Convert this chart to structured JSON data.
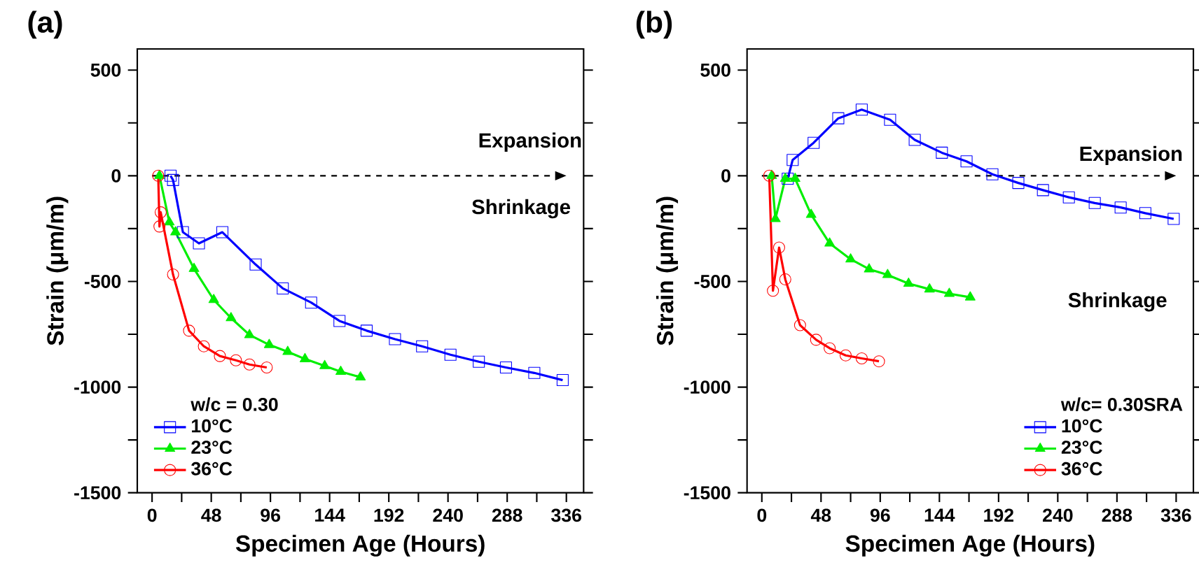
{
  "chart_data": [
    {
      "type": "line",
      "title": "(a)",
      "xlabel": "Specimen Age (Hours)",
      "ylabel": "Strain (μm/m)",
      "legend_title": "w/c = 0.30",
      "legend": "bottom left",
      "xlim": [
        -12,
        350
      ],
      "ylim": [
        -1500,
        600
      ],
      "xticks": [
        0,
        {
          "value": 24,
          "label": null
        },
        48,
        {
          "value": 72,
          "label": null
        },
        96,
        {
          "value": 120,
          "label": null
        },
        144,
        {
          "value": 168,
          "label": null
        },
        192,
        {
          "value": 216,
          "label": null
        },
        240,
        {
          "value": 264,
          "label": null
        },
        288,
        {
          "value": 312,
          "label": null
        },
        336
      ],
      "yticks": [
        -1500,
        {
          "value": -1250,
          "label": null
        },
        -1000,
        {
          "value": -750,
          "label": null
        },
        -500,
        {
          "value": -250,
          "label": null
        },
        0,
        {
          "value": 250,
          "label": null
        },
        500
      ],
      "ref_lines": [
        {
          "axis": "y",
          "value": 0,
          "line_style": "dashed",
          "color": "#000000"
        }
      ],
      "annotations": [
        "Expansion",
        "Shrinkage"
      ],
      "series": [
        {
          "name": "10°C",
          "color": "#0000ff",
          "marker": "square",
          "x": [
            15,
            17,
            25,
            38,
            57,
            84,
            106,
            129,
            152,
            174,
            197,
            219,
            242,
            265,
            287,
            310,
            333
          ],
          "values": [
            0,
            -20,
            -267,
            -320,
            -267,
            -420,
            -533,
            -600,
            -687,
            -733,
            -773,
            -807,
            -847,
            -880,
            -907,
            -933,
            -967
          ]
        },
        {
          "name": "23°C",
          "color": "#00ee00",
          "marker": "triangle",
          "x": [
            6,
            14,
            19,
            34,
            50,
            64,
            79,
            95,
            110,
            124,
            140,
            153,
            169
          ],
          "values": [
            0,
            -220,
            -267,
            -440,
            -587,
            -673,
            -753,
            -800,
            -833,
            -867,
            -900,
            -927,
            -953
          ]
        },
        {
          "name": "36°C",
          "color": "#ff0000",
          "marker": "circle",
          "x": [
            5,
            6,
            7,
            17,
            30,
            42,
            55,
            68,
            79,
            93
          ],
          "values": [
            0,
            -240,
            -173,
            -467,
            -733,
            -807,
            -853,
            -873,
            -893,
            -907
          ]
        }
      ]
    },
    {
      "type": "line",
      "title": "(b)",
      "xlabel": "Specimen Age (Hours)",
      "ylabel": "Strain (μm/m)",
      "legend_title": "w/c= 0.30SRA",
      "legend": "bottom right",
      "xlim": [
        -12,
        350
      ],
      "ylim": [
        -1500,
        600
      ],
      "xticks": [
        0,
        {
          "value": 24,
          "label": null
        },
        48,
        {
          "value": 72,
          "label": null
        },
        96,
        {
          "value": 120,
          "label": null
        },
        144,
        {
          "value": 168,
          "label": null
        },
        192,
        {
          "value": 216,
          "label": null
        },
        240,
        {
          "value": 264,
          "label": null
        },
        288,
        {
          "value": 312,
          "label": null
        },
        336
      ],
      "yticks": [
        -1500,
        {
          "value": -1250,
          "label": null
        },
        -1000,
        {
          "value": -750,
          "label": null
        },
        -500,
        {
          "value": -250,
          "label": null
        },
        0,
        {
          "value": 250,
          "label": null
        },
        500
      ],
      "ref_lines": [
        {
          "axis": "y",
          "value": 0,
          "line_style": "dashed",
          "color": "#000000"
        }
      ],
      "annotations": [
        "Expansion",
        "Shrinkage"
      ],
      "series": [
        {
          "name": "10°C",
          "color": "#0000ff",
          "marker": "square",
          "x": [
            21,
            25,
            42,
            62,
            81,
            104,
            124,
            146,
            166,
            187,
            208,
            228,
            249,
            270,
            291,
            311,
            334
          ],
          "values": [
            -14,
            75,
            156,
            272,
            313,
            265,
            170,
            109,
            68,
            7,
            -34,
            -68,
            -102,
            -129,
            -150,
            -177,
            -204
          ]
        },
        {
          "name": "23°C",
          "color": "#00ee00",
          "marker": "triangle",
          "x": [
            8,
            11,
            19,
            27,
            40,
            55,
            72,
            87,
            102,
            119,
            136,
            152,
            169
          ],
          "values": [
            0,
            -204,
            -14,
            -14,
            -184,
            -320,
            -395,
            -442,
            -469,
            -510,
            -537,
            -558,
            -575
          ]
        },
        {
          "name": "36°C",
          "color": "#ff0000",
          "marker": "circle",
          "x": [
            6,
            9,
            14,
            19,
            31,
            44,
            55,
            68,
            81,
            95
          ],
          "values": [
            0,
            -544,
            -340,
            -490,
            -707,
            -776,
            -816,
            -850,
            -864,
            -878
          ]
        }
      ]
    }
  ]
}
